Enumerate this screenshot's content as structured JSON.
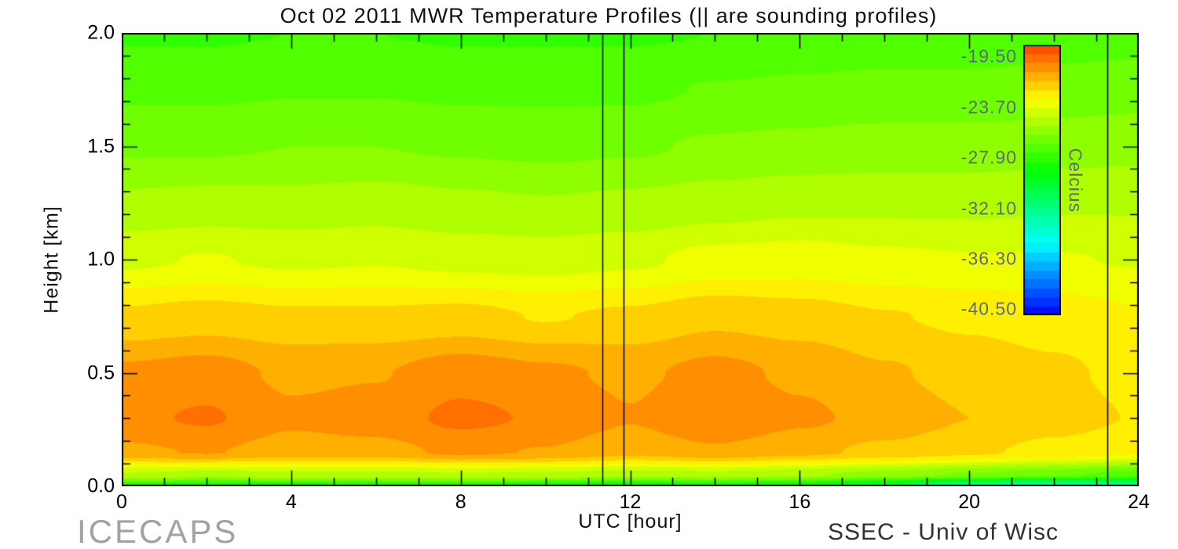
{
  "footer": {
    "left": "ICECAPS",
    "right": "SSEC - Univ of Wisc"
  },
  "chart_data": {
    "type": "heatmap",
    "title": "Oct 02 2011 MWR Temperature Profiles (|| are sounding profiles)",
    "xlabel": "UTC [hour]",
    "ylabel": "Height [km]",
    "colorbar_label": "Celcius",
    "xlim": [
      0,
      24
    ],
    "ylim": [
      0,
      2
    ],
    "x_ticks": [
      0,
      4,
      8,
      12,
      16,
      20,
      24
    ],
    "x_tick_labels": [
      "0",
      "4",
      "8",
      "12",
      "16",
      "20",
      "24"
    ],
    "x_minor_step": 1,
    "y_ticks": [
      0.0,
      0.5,
      1.0,
      1.5,
      2.0
    ],
    "y_tick_labels": [
      "0.0",
      "0.5",
      "1.0",
      "1.5",
      "2.0"
    ],
    "y_minor_step": 0.1,
    "grid": false,
    "legend_position": "colorbar-right-inside",
    "x_hours": [
      0,
      2,
      4,
      6,
      8,
      10,
      12,
      14,
      16,
      18,
      20,
      22,
      24
    ],
    "y_heights_km": [
      2.0,
      1.75,
      1.5,
      1.25,
      1.0,
      0.75,
      0.5,
      0.3,
      0.15,
      0.05,
      0.0
    ],
    "temperature_c": [
      [
        -27.6,
        -27.6,
        -27.5,
        -27.5,
        -27.6,
        -27.6,
        -27.6,
        -27.5,
        -27.4,
        -27.3,
        -27.3,
        -27.2,
        -27.1
      ],
      [
        -26.9,
        -26.9,
        -26.8,
        -26.8,
        -26.9,
        -26.9,
        -26.9,
        -26.7,
        -26.6,
        -26.5,
        -26.5,
        -26.4,
        -26.3
      ],
      [
        -26.1,
        -26.1,
        -26.0,
        -26.0,
        -26.1,
        -26.2,
        -26.1,
        -25.9,
        -25.8,
        -25.7,
        -25.7,
        -25.6,
        -25.5
      ],
      [
        -25.1,
        -25.0,
        -25.0,
        -24.9,
        -25.1,
        -25.2,
        -25.1,
        -24.9,
        -24.7,
        -24.7,
        -24.7,
        -24.6,
        -24.6
      ],
      [
        -23.9,
        -23.7,
        -23.9,
        -23.8,
        -24.0,
        -24.1,
        -23.9,
        -23.5,
        -23.4,
        -23.6,
        -23.7,
        -23.7,
        -23.8
      ],
      [
        -22.1,
        -21.9,
        -22.1,
        -22.1,
        -22.0,
        -22.3,
        -22.1,
        -21.7,
        -21.9,
        -22.2,
        -22.4,
        -22.6,
        -22.9
      ],
      [
        -20.6,
        -20.4,
        -20.9,
        -20.8,
        -20.3,
        -20.6,
        -20.9,
        -20.5,
        -20.9,
        -21.4,
        -21.8,
        -22.1,
        -22.5
      ],
      [
        -20.2,
        -19.9,
        -20.6,
        -20.4,
        -19.8,
        -20.1,
        -20.7,
        -20.0,
        -20.6,
        -21.0,
        -21.5,
        -21.9,
        -22.3
      ],
      [
        -20.9,
        -20.7,
        -21.1,
        -21.0,
        -20.6,
        -20.8,
        -21.3,
        -20.9,
        -21.3,
        -21.7,
        -22.1,
        -22.5,
        -22.9
      ],
      [
        -24.6,
        -24.9,
        -24.7,
        -24.8,
        -24.6,
        -24.7,
        -24.9,
        -24.8,
        -25.1,
        -25.6,
        -26.1,
        -26.6,
        -27.1
      ],
      [
        -28.6,
        -29.1,
        -28.9,
        -28.8,
        -28.6,
        -29.1,
        -29.6,
        -29.1,
        -29.6,
        -31.0,
        -33.5,
        -34.0,
        -33.5
      ]
    ],
    "sounding_profile_hours": [
      11.35,
      11.85,
      23.25
    ],
    "band_step_c": 0.75,
    "color_scale": {
      "min": -41.0,
      "max": -18.5,
      "tick_values": [
        -19.5,
        -23.7,
        -27.9,
        -32.1,
        -36.3,
        -40.5
      ],
      "tick_labels": [
        "-19.50",
        "-23.70",
        "-27.90",
        "-32.10",
        "-36.30",
        "-40.50"
      ],
      "low_color": "#2222dd",
      "high_color": "#ff6600"
    }
  }
}
